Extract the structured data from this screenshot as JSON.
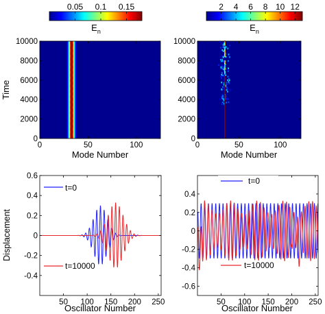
{
  "chart_data": [
    {
      "type": "heatmap",
      "panel": "top-left",
      "colorbar": {
        "label": "E",
        "label_sub": "n",
        "ticks": [
          "0.05",
          "0.1",
          "0.15"
        ],
        "range": [
          0,
          0.18
        ]
      },
      "xlabel": "Mode Number",
      "ylabel": "Time",
      "xlim": [
        0,
        125
      ],
      "ylim": [
        0,
        10000
      ],
      "xticks": [
        "0",
        "50",
        "100"
      ],
      "yticks": [
        "0",
        "2000",
        "4000",
        "6000",
        "8000",
        "10000"
      ],
      "bands": [
        {
          "x_center": 33,
          "value": 0.18
        },
        {
          "x_center": 33,
          "value": 0.12,
          "halfwidth": 3
        },
        {
          "x_center": 33,
          "value": 0.06,
          "halfwidth": 5
        }
      ]
    },
    {
      "type": "heatmap",
      "panel": "top-right",
      "colorbar": {
        "label": "E",
        "label_sub": "n",
        "ticks": [
          "2",
          "4",
          "6",
          "8",
          "10",
          "12"
        ],
        "range": [
          0,
          13
        ]
      },
      "xlabel": "Mode Number",
      "ylabel": "",
      "xlim": [
        0,
        125
      ],
      "ylim": [
        0,
        10000
      ],
      "xticks": [
        "0",
        "50",
        "100"
      ],
      "yticks": [
        "0",
        "2000",
        "4000",
        "6000",
        "8000",
        "10000"
      ],
      "line": {
        "x": 33,
        "y_range": [
          0,
          6500
        ],
        "value": 13
      }
    },
    {
      "type": "line",
      "panel": "bottom-left",
      "xlabel": "Oscillator Number",
      "ylabel": "Displacement",
      "xlim": [
        0,
        256
      ],
      "ylim": [
        -0.6,
        0.6
      ],
      "xticks": [
        "50",
        "100",
        "150",
        "200",
        "250"
      ],
      "yticks": [
        "-0.4",
        "-0.2",
        "0",
        "0.2",
        "0.4",
        "0.6"
      ],
      "series": [
        {
          "name": "t=0",
          "color": "#1f1fff",
          "packet": {
            "center": 128,
            "amplitude": 0.3,
            "width": 14,
            "wavelength": 7.8
          }
        },
        {
          "name": "t=10000",
          "color": "#e8262a",
          "packet": {
            "center": 160,
            "amplitude": 0.33,
            "width": 16,
            "wavelength": 7.8
          }
        }
      ]
    },
    {
      "type": "line",
      "panel": "bottom-right",
      "xlabel": "Oscillator Number",
      "ylabel": "",
      "xlim": [
        0,
        256
      ],
      "ylim": [
        -0.7,
        0.6
      ],
      "xticks": [
        "50",
        "100",
        "150",
        "200",
        "250"
      ],
      "yticks": [
        "-0.6",
        "-0.4",
        "-0.2",
        "0",
        "0.2",
        "0.4"
      ],
      "series": [
        {
          "name": "t=0",
          "color": "#1f1fff",
          "carrier": {
            "amplitude": 0.3,
            "wavelength": 7.75
          }
        },
        {
          "name": "t=10000",
          "color": "#e8262a",
          "carrier": {
            "amplitude": 0.3,
            "wavelength": 7.9
          }
        }
      ]
    }
  ]
}
